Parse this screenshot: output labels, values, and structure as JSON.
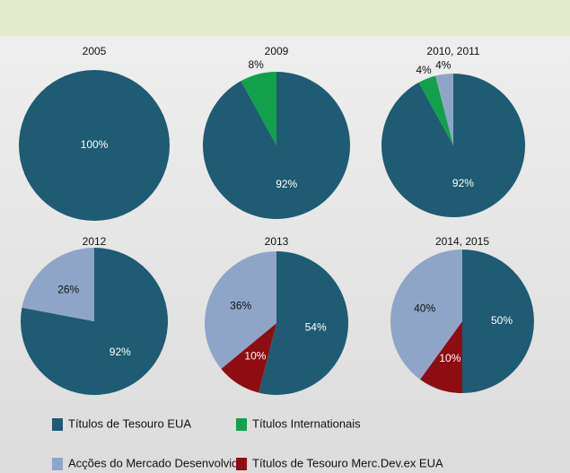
{
  "chart_data": {
    "type": "pie",
    "categories": [
      "2005",
      "2009",
      "2010, 2011",
      "2012",
      "2013",
      "2014, 2015"
    ],
    "series": [
      {
        "name": "Títulos de Tesouro EUA",
        "color": "#1f5b72",
        "values": [
          100,
          92,
          92,
          92,
          54,
          50
        ],
        "value_labels": [
          "100%",
          "92%",
          "92%",
          "92%",
          "54%",
          "50%"
        ]
      },
      {
        "name": "Títulos Internationais",
        "color": "#12a04b",
        "values": [
          null,
          8,
          4,
          null,
          null,
          null
        ],
        "value_labels": [
          null,
          "8%",
          "4%",
          null,
          null,
          null
        ]
      },
      {
        "name": "Acções do Mercado Desenvolvido",
        "color": "#8ea5c8",
        "values": [
          null,
          null,
          4,
          26,
          36,
          40
        ],
        "value_labels": [
          null,
          null,
          "4%",
          "26%",
          "36%",
          "40%"
        ]
      },
      {
        "name": "Títulos de Tesouro Merc.Dev.ex EUA",
        "color": "#8e0d12",
        "values": [
          null,
          null,
          null,
          null,
          10,
          10
        ],
        "value_labels": [
          null,
          null,
          null,
          null,
          "10%",
          "10%"
        ]
      }
    ]
  }
}
